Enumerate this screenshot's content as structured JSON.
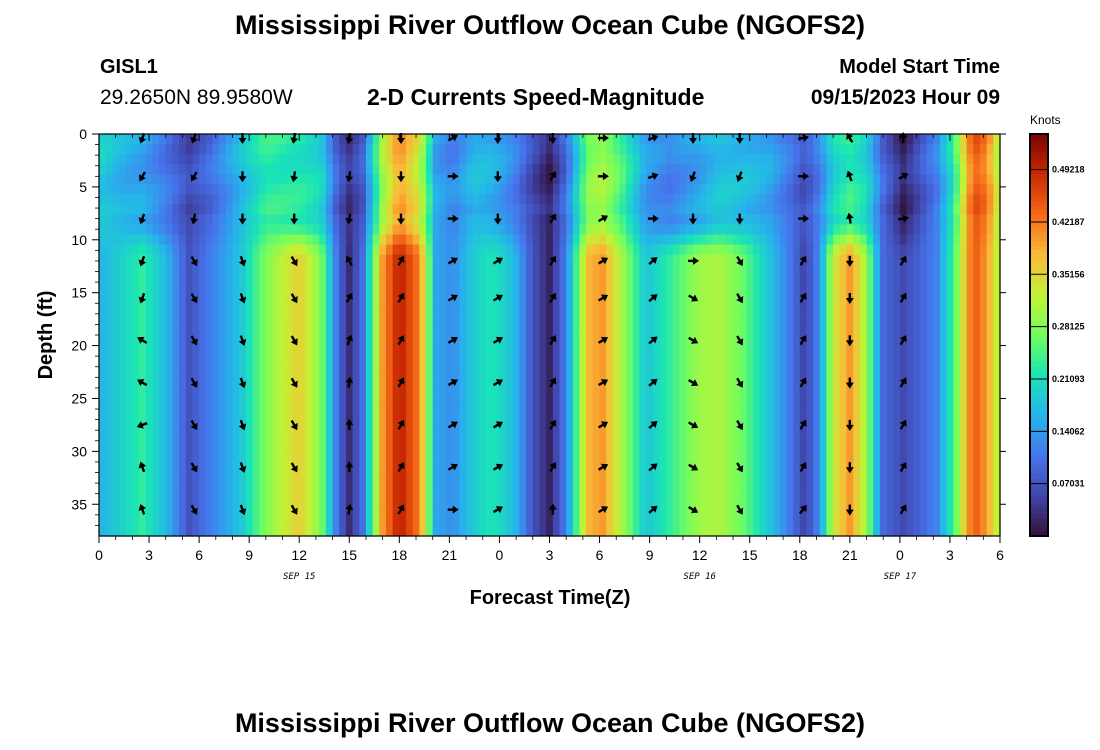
{
  "page": {
    "title_top": "Mississippi River Outflow Ocean Cube (NGOFS2)",
    "title_bottom": "Mississippi River Outflow Ocean Cube (NGOFS2)"
  },
  "station": {
    "id": "GISL1",
    "coords": "29.2650N  89.9580W"
  },
  "model": {
    "label": "Model Start Time",
    "time": "09/15/2023 Hour 09"
  },
  "chart_data": {
    "type": "heatmap",
    "title": "2-D Currents Speed-Magnitude",
    "xlabel": "Forecast Time(Z)",
    "ylabel": "Depth (ft)",
    "x_ticks": [
      "0",
      "3",
      "6",
      "9",
      "12",
      "15",
      "18",
      "21",
      "0",
      "3",
      "6",
      "9",
      "12",
      "15",
      "18",
      "21",
      "0",
      "3",
      "6"
    ],
    "x_range_hours": [
      0,
      54
    ],
    "y_ticks": [
      "0",
      "5",
      "10",
      "15",
      "20",
      "25",
      "30",
      "35"
    ],
    "y_range": [
      0,
      38
    ],
    "y_reversed": true,
    "day_labels": [
      {
        "text": "SEP 15",
        "hour": 12
      },
      {
        "text": "SEP 16",
        "hour": 36
      },
      {
        "text": "SEP 17",
        "hour": 48
      }
    ],
    "colorbar": {
      "unit": "Knots",
      "range": [
        0,
        0.54
      ],
      "ticks": [
        {
          "value": 0.07031,
          "label": "0.07031"
        },
        {
          "value": 0.14062,
          "label": "0.14062"
        },
        {
          "value": 0.21093,
          "label": "0.21093"
        },
        {
          "value": 0.28125,
          "label": "0.28125"
        },
        {
          "value": 0.35156,
          "label": "0.35156"
        },
        {
          "value": 0.42187,
          "label": "0.42187"
        },
        {
          "value": 0.49218,
          "label": "0.49218"
        }
      ]
    },
    "vector_hours": [
      2.6,
      5.7,
      8.6,
      11.7,
      15.0,
      18.1,
      21.2,
      23.9,
      27.2,
      30.2,
      33.2,
      35.6,
      38.4,
      42.2,
      45.0,
      48.2
    ],
    "vector_depths": [
      0,
      4,
      8,
      12,
      15.5,
      19.5,
      23.5,
      27.5,
      31.5,
      35.5
    ],
    "vector_headings_deg": [
      [
        200,
        210,
        200,
        200,
        200,
        300,
        300,
        250,
        340,
        340
      ],
      [
        200,
        210,
        190,
        150,
        150,
        150,
        150,
        150,
        150,
        150
      ],
      [
        180,
        180,
        180,
        160,
        160,
        160,
        160,
        160,
        160,
        160
      ],
      [
        190,
        190,
        180,
        150,
        150,
        150,
        150,
        150,
        150,
        150
      ],
      [
        190,
        190,
        190,
        330,
        30,
        20,
        10,
        0,
        0,
        10
      ],
      [
        180,
        180,
        180,
        30,
        30,
        30,
        30,
        30,
        30,
        30
      ],
      [
        60,
        90,
        90,
        60,
        60,
        60,
        60,
        60,
        60,
        90
      ],
      [
        180,
        180,
        180,
        60,
        60,
        60,
        60,
        60,
        60,
        60
      ],
      [
        180,
        30,
        30,
        30,
        30,
        30,
        30,
        30,
        30,
        0
      ],
      [
        90,
        90,
        60,
        60,
        60,
        60,
        60,
        60,
        60,
        60
      ],
      [
        70,
        70,
        90,
        50,
        50,
        50,
        50,
        50,
        50,
        50
      ],
      [
        180,
        200,
        180,
        90,
        120,
        120,
        120,
        120,
        120,
        120
      ],
      [
        180,
        200,
        180,
        150,
        150,
        150,
        150,
        150,
        150,
        150
      ],
      [
        80,
        90,
        90,
        30,
        30,
        30,
        30,
        30,
        30,
        40
      ],
      [
        330,
        340,
        350,
        180,
        180,
        180,
        180,
        180,
        180,
        180
      ],
      [
        0,
        60,
        80,
        30,
        30,
        30,
        30,
        30,
        30,
        30
      ]
    ],
    "speed_profiles": [
      {
        "hour": 0.0,
        "surface": 0.19,
        "deep": 0.16
      },
      {
        "hour": 1.5,
        "surface": 0.16,
        "deep": 0.2
      },
      {
        "hour": 2.6,
        "surface": 0.15,
        "deep": 0.23
      },
      {
        "hour": 4.0,
        "surface": 0.11,
        "deep": 0.17
      },
      {
        "hour": 5.4,
        "surface": 0.06,
        "deep": 0.07
      },
      {
        "hour": 6.8,
        "surface": 0.1,
        "deep": 0.12
      },
      {
        "hour": 8.5,
        "surface": 0.17,
        "deep": 0.18
      },
      {
        "hour": 10.0,
        "surface": 0.23,
        "deep": 0.28
      },
      {
        "hour": 12.0,
        "surface": 0.22,
        "deep": 0.36
      },
      {
        "hour": 13.3,
        "surface": 0.2,
        "deep": 0.28
      },
      {
        "hour": 14.3,
        "surface": 0.08,
        "deep": 0.1
      },
      {
        "hour": 15.0,
        "surface": 0.04,
        "deep": 0.03
      },
      {
        "hour": 15.8,
        "surface": 0.08,
        "deep": 0.1
      },
      {
        "hour": 17.0,
        "surface": 0.3,
        "deep": 0.4
      },
      {
        "hour": 18.0,
        "surface": 0.4,
        "deep": 0.5
      },
      {
        "hour": 19.2,
        "surface": 0.33,
        "deep": 0.42
      },
      {
        "hour": 20.2,
        "surface": 0.15,
        "deep": 0.15
      },
      {
        "hour": 21.2,
        "surface": 0.12,
        "deep": 0.13
      },
      {
        "hour": 22.5,
        "surface": 0.17,
        "deep": 0.19
      },
      {
        "hour": 23.6,
        "surface": 0.16,
        "deep": 0.22
      },
      {
        "hour": 24.9,
        "surface": 0.12,
        "deep": 0.17
      },
      {
        "hour": 26.0,
        "surface": 0.06,
        "deep": 0.07
      },
      {
        "hour": 27.0,
        "surface": 0.02,
        "deep": 0.02
      },
      {
        "hour": 28.0,
        "surface": 0.1,
        "deep": 0.12
      },
      {
        "hour": 29.3,
        "surface": 0.28,
        "deep": 0.38
      },
      {
        "hour": 30.2,
        "surface": 0.3,
        "deep": 0.4
      },
      {
        "hour": 31.4,
        "surface": 0.24,
        "deep": 0.3
      },
      {
        "hour": 32.8,
        "surface": 0.14,
        "deep": 0.18
      },
      {
        "hour": 34.2,
        "surface": 0.12,
        "deep": 0.23
      },
      {
        "hour": 36.0,
        "surface": 0.15,
        "deep": 0.3
      },
      {
        "hour": 37.2,
        "surface": 0.18,
        "deep": 0.31
      },
      {
        "hour": 38.7,
        "surface": 0.17,
        "deep": 0.26
      },
      {
        "hour": 40.2,
        "surface": 0.15,
        "deep": 0.18
      },
      {
        "hour": 41.6,
        "surface": 0.1,
        "deep": 0.1
      },
      {
        "hour": 42.3,
        "surface": 0.07,
        "deep": 0.05
      },
      {
        "hour": 43.2,
        "surface": 0.12,
        "deep": 0.13
      },
      {
        "hour": 44.0,
        "surface": 0.2,
        "deep": 0.33
      },
      {
        "hour": 45.0,
        "surface": 0.23,
        "deep": 0.4
      },
      {
        "hour": 46.0,
        "surface": 0.2,
        "deep": 0.3
      },
      {
        "hour": 46.9,
        "surface": 0.1,
        "deep": 0.1
      },
      {
        "hour": 48.2,
        "surface": 0.02,
        "deep": 0.06
      },
      {
        "hour": 49.2,
        "surface": 0.07,
        "deep": 0.09
      },
      {
        "hour": 50.2,
        "surface": 0.12,
        "deep": 0.12
      },
      {
        "hour": 51.2,
        "surface": 0.22,
        "deep": 0.24
      },
      {
        "hour": 52.4,
        "surface": 0.45,
        "deep": 0.45
      },
      {
        "hour": 53.2,
        "surface": 0.42,
        "deep": 0.4
      },
      {
        "hour": 54.0,
        "surface": 0.3,
        "deep": 0.3
      }
    ]
  }
}
